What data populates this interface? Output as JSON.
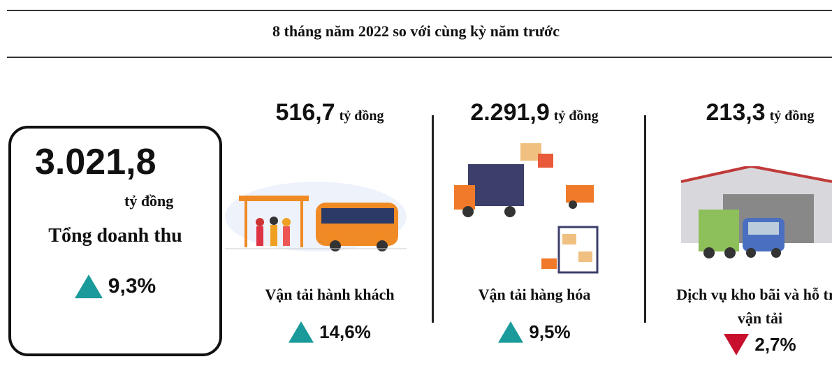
{
  "header": {
    "title": "8 tháng năm 2022 so với cùng kỳ năm trước"
  },
  "total": {
    "value": "3.021,8",
    "unit": "tỷ đồng",
    "label": "Tổng doanh thu",
    "change": "9,3%",
    "direction": "up"
  },
  "segments": [
    {
      "value": "516,7",
      "unit": "tỷ đồng",
      "label": "Vận tải hành khách",
      "change": "14,6%",
      "direction": "up"
    },
    {
      "value": "2.291,9",
      "unit": "tỷ đồng",
      "label": "Vận tải hàng hóa",
      "change": "9,5%",
      "direction": "up"
    },
    {
      "value": "213,3",
      "unit": "tỷ đồng",
      "label": "Dịch vụ kho bãi và hỗ trợ vận tải",
      "change": "2,7%",
      "direction": "down"
    }
  ]
}
